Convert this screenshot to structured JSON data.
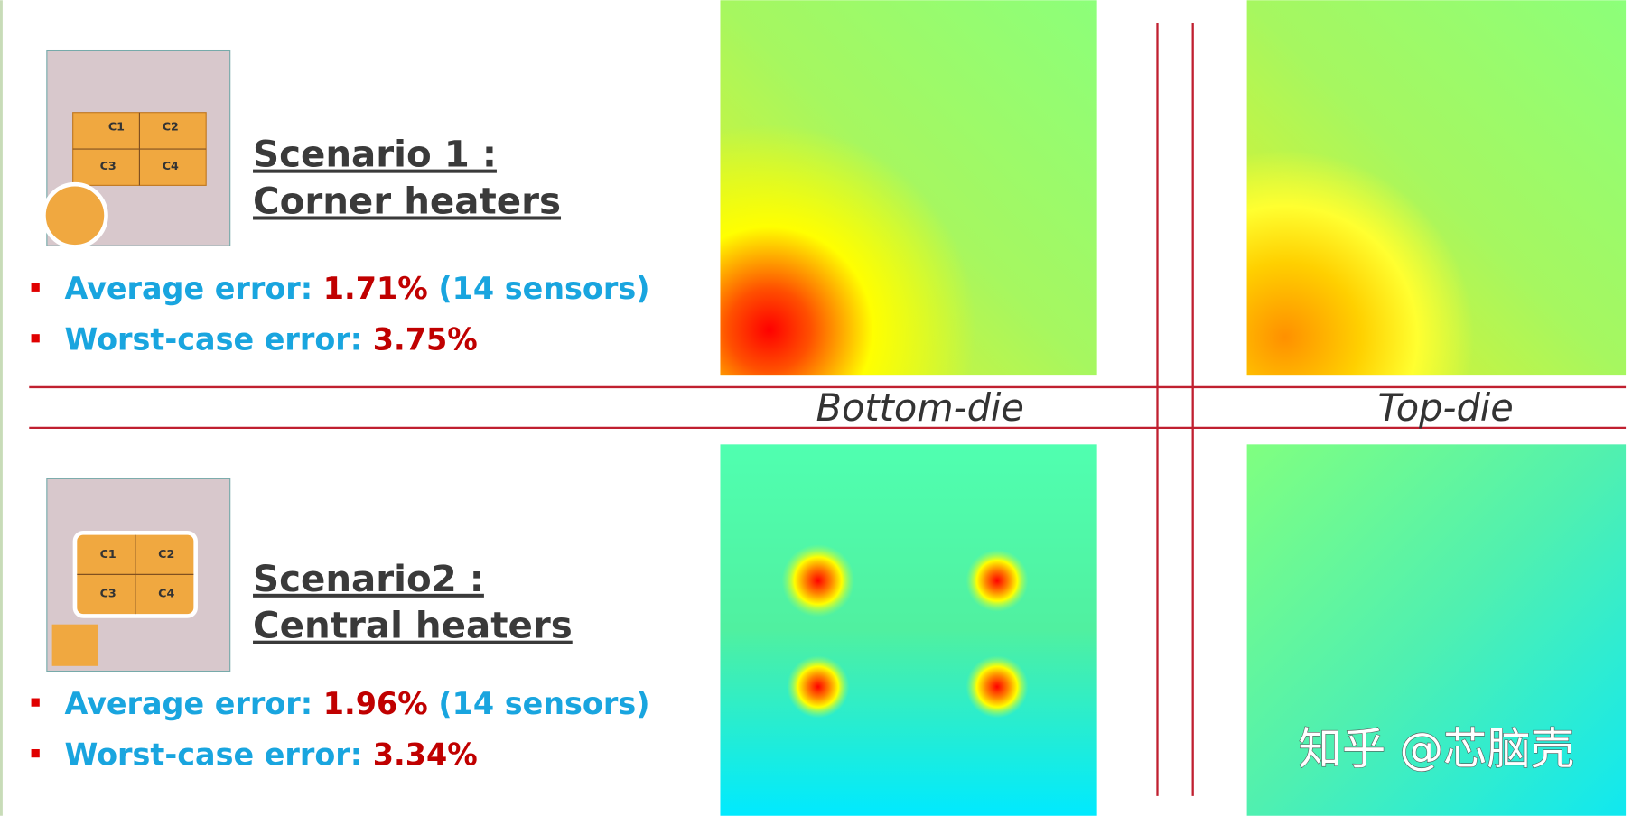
{
  "scenarios": [
    {
      "title_line1": "Scenario 1 :",
      "title_line2": "Corner heaters",
      "average_label": "Average error:",
      "average_value": "1.71%",
      "average_note": "(14 sensors)",
      "worst_label": "Worst-case error:",
      "worst_value": "3.75%",
      "chip_labels": [
        "C1",
        "C2",
        "C3",
        "C4"
      ]
    },
    {
      "title_line1": "Scenario2 :",
      "title_line2": "Central heaters",
      "average_label": "Average error:",
      "average_value": "1.96%",
      "average_note": "(14 sensors)",
      "worst_label": "Worst-case error:",
      "worst_value": "3.34%",
      "chip_labels": [
        "C1",
        "C2",
        "C3",
        "C4"
      ]
    }
  ],
  "die_labels": [
    "Bottom-die",
    "Top-die"
  ],
  "watermark": "知乎 @芯脑壳"
}
